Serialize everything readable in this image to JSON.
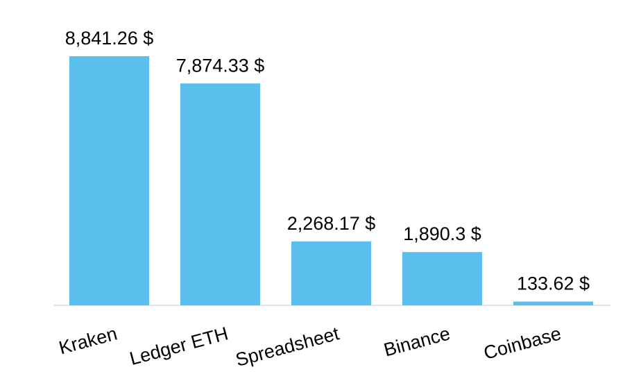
{
  "chart_data": {
    "type": "bar",
    "categories": [
      "Kraken",
      "Ledger ETH",
      "Spreadsheet",
      "Binance",
      "Coinbase"
    ],
    "values": [
      8841.26,
      7874.33,
      2268.17,
      1890.3,
      133.62
    ],
    "value_labels": [
      "8,841.26 $",
      "7,874.33 $",
      "2,268.17 $",
      "1,890.3 $",
      "133.62 $"
    ],
    "title": "",
    "xlabel": "",
    "ylabel": "",
    "ylim": [
      0,
      8841.26
    ],
    "grid": false,
    "legend": "none",
    "bar_color": "#5bbfed",
    "axis_color": "#d9d9d9"
  }
}
